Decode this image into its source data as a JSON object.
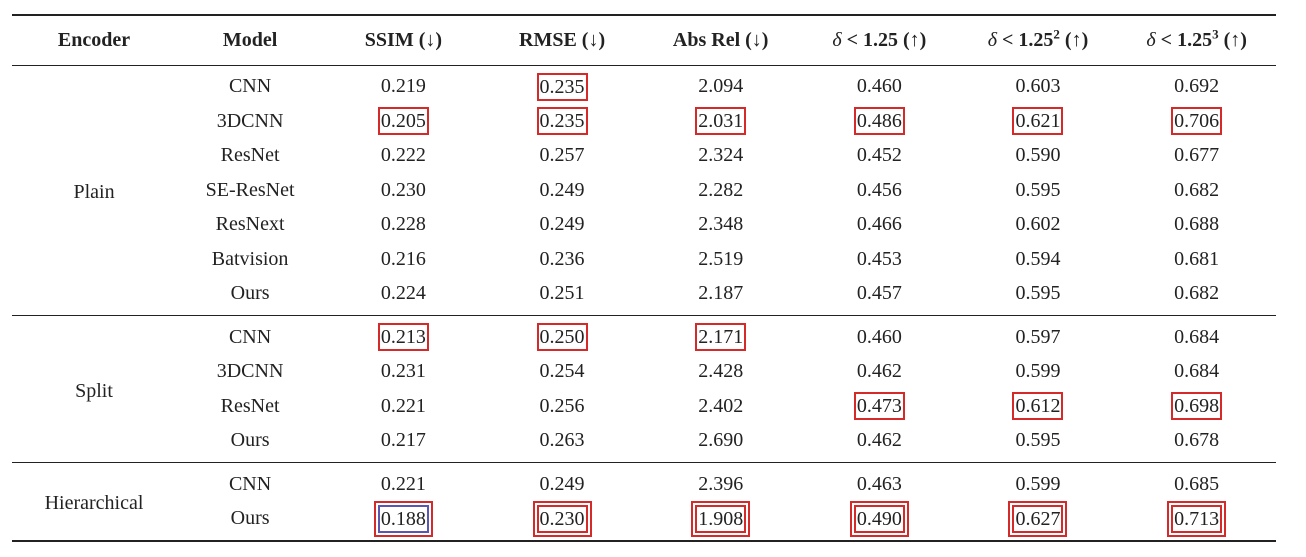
{
  "headers": {
    "encoder": "Encoder",
    "model": "Model",
    "ssim": "SSIM (↓)",
    "rmse": "RMSE (↓)",
    "absrel": "Abs Rel (↓)",
    "d1_prefix": "δ",
    "d1_rest": " < 1.25 (↑)",
    "d2_prefix": "δ",
    "d2_rest": " < 1.25",
    "d2_sup": "2",
    "d2_arrow": " (↑)",
    "d3_prefix": "δ",
    "d3_rest": " < 1.25",
    "d3_sup": "3",
    "d3_arrow": " (↑)"
  },
  "groups": [
    {
      "encoder": "Plain",
      "rows": [
        {
          "model": "CNN",
          "ssim": "0.219",
          "rmse": "0.235",
          "absrel": "2.094",
          "d1": "0.460",
          "d2": "0.603",
          "d3": "0.692"
        },
        {
          "model": "3DCNN",
          "ssim": "0.205",
          "rmse": "0.235",
          "absrel": "2.031",
          "d1": "0.486",
          "d2": "0.621",
          "d3": "0.706"
        },
        {
          "model": "ResNet",
          "ssim": "0.222",
          "rmse": "0.257",
          "absrel": "2.324",
          "d1": "0.452",
          "d2": "0.590",
          "d3": "0.677"
        },
        {
          "model": "SE-ResNet",
          "ssim": "0.230",
          "rmse": "0.249",
          "absrel": "2.282",
          "d1": "0.456",
          "d2": "0.595",
          "d3": "0.682"
        },
        {
          "model": "ResNext",
          "ssim": "0.228",
          "rmse": "0.249",
          "absrel": "2.348",
          "d1": "0.466",
          "d2": "0.602",
          "d3": "0.688"
        },
        {
          "model": "Batvision",
          "ssim": "0.216",
          "rmse": "0.236",
          "absrel": "2.519",
          "d1": "0.453",
          "d2": "0.594",
          "d3": "0.681"
        },
        {
          "model": "Ours",
          "ssim": "0.224",
          "rmse": "0.251",
          "absrel": "2.187",
          "d1": "0.457",
          "d2": "0.595",
          "d3": "0.682"
        }
      ]
    },
    {
      "encoder": "Split",
      "rows": [
        {
          "model": "CNN",
          "ssim": "0.213",
          "rmse": "0.250",
          "absrel": "2.171",
          "d1": "0.460",
          "d2": "0.597",
          "d3": "0.684"
        },
        {
          "model": "3DCNN",
          "ssim": "0.231",
          "rmse": "0.254",
          "absrel": "2.428",
          "d1": "0.462",
          "d2": "0.599",
          "d3": "0.684"
        },
        {
          "model": "ResNet",
          "ssim": "0.221",
          "rmse": "0.256",
          "absrel": "2.402",
          "d1": "0.473",
          "d2": "0.612",
          "d3": "0.698"
        },
        {
          "model": "Ours",
          "ssim": "0.217",
          "rmse": "0.263",
          "absrel": "2.690",
          "d1": "0.462",
          "d2": "0.595",
          "d3": "0.678"
        }
      ]
    },
    {
      "encoder": "Hierarchical",
      "rows": [
        {
          "model": "CNN",
          "ssim": "0.221",
          "rmse": "0.249",
          "absrel": "2.396",
          "d1": "0.463",
          "d2": "0.599",
          "d3": "0.685"
        },
        {
          "model": "Ours",
          "ssim": "0.188",
          "rmse": "0.230",
          "absrel": "1.908",
          "d1": "0.490",
          "d2": "0.627",
          "d3": "0.713"
        }
      ]
    }
  ],
  "colors": {
    "box_red": "#d42a2a",
    "box_blue": "#5b55b0",
    "rule": "#222222"
  }
}
